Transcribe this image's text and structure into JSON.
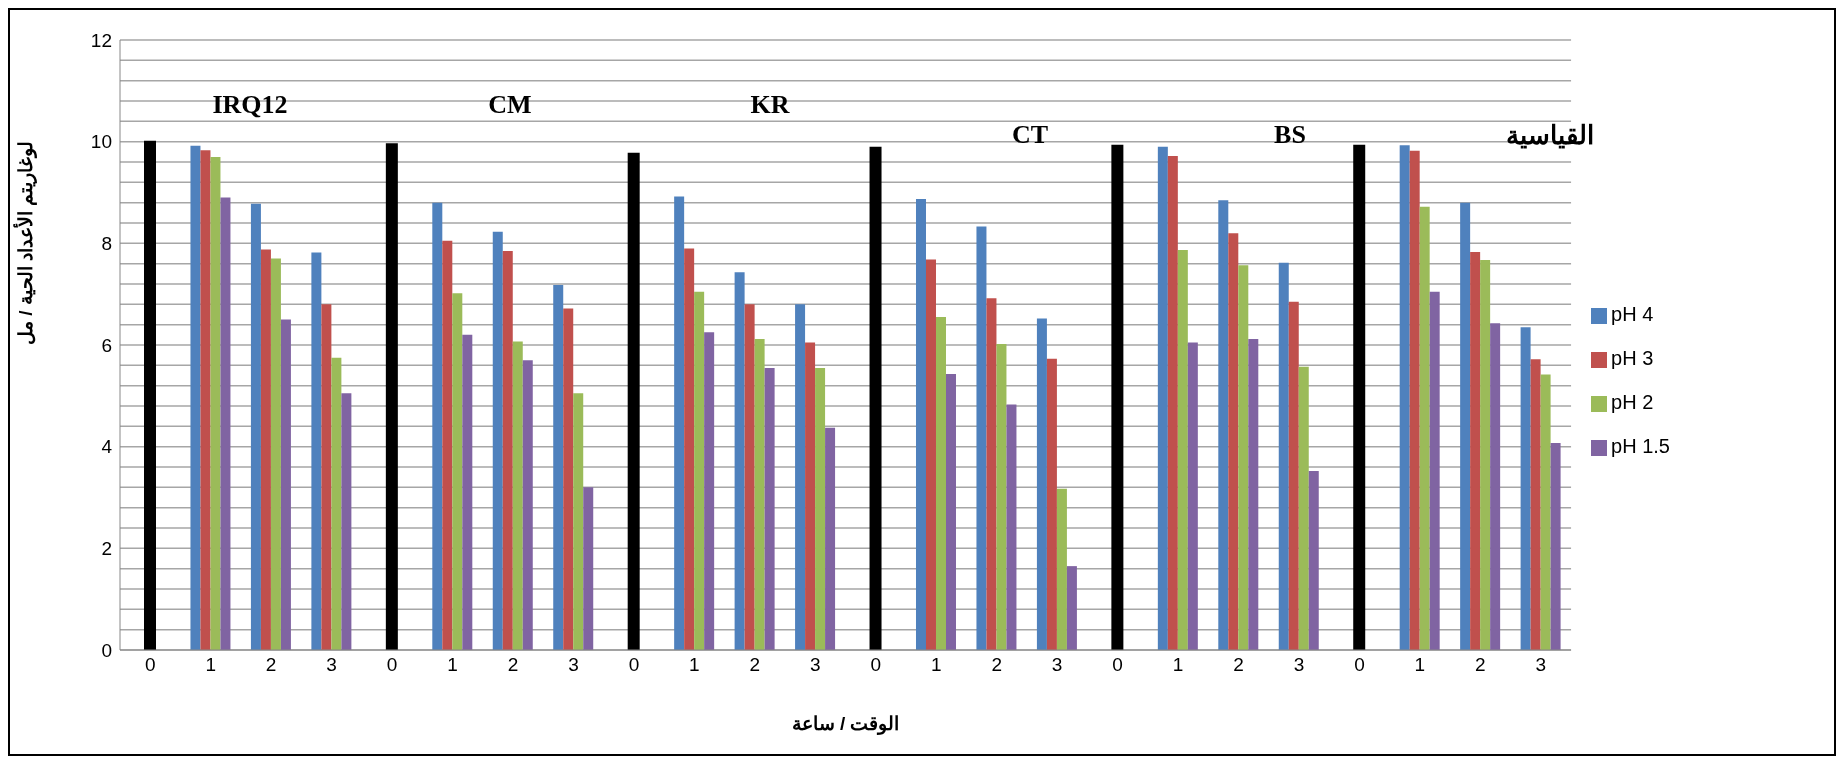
{
  "chart_data": {
    "type": "bar",
    "categories": [
      "0",
      "1",
      "2",
      "3",
      "0",
      "1",
      "2",
      "3",
      "0",
      "1",
      "2",
      "3",
      "0",
      "1",
      "2",
      "3",
      "0",
      "1",
      "2",
      "3",
      "0",
      "1",
      "2",
      "3"
    ],
    "series": [
      {
        "name": "pH 4",
        "color": "#4f81bd",
        "values": [
          null,
          9.92,
          8.78,
          7.82,
          null,
          8.8,
          8.23,
          7.18,
          null,
          8.92,
          7.43,
          6.8,
          null,
          8.87,
          8.33,
          6.52,
          null,
          9.9,
          8.85,
          7.62,
          null,
          9.93,
          8.8,
          6.35
        ]
      },
      {
        "name": "pH 3",
        "color": "#c0504d",
        "values": [
          null,
          9.83,
          7.88,
          6.8,
          null,
          8.05,
          7.85,
          6.72,
          null,
          7.9,
          6.8,
          6.05,
          null,
          7.68,
          6.92,
          5.73,
          null,
          9.72,
          8.2,
          6.85,
          null,
          9.82,
          7.83,
          5.72
        ]
      },
      {
        "name": "pH 2",
        "color": "#9bbb59",
        "values": [
          null,
          9.7,
          7.7,
          5.75,
          null,
          7.02,
          6.07,
          5.05,
          null,
          7.05,
          6.12,
          5.55,
          null,
          6.55,
          6.02,
          3.17,
          null,
          7.87,
          7.57,
          5.57,
          null,
          8.72,
          7.67,
          5.42
        ]
      },
      {
        "name": "pH 1.5",
        "color": "#8064a2",
        "values": [
          null,
          8.9,
          6.5,
          5.05,
          null,
          6.2,
          5.7,
          3.2,
          null,
          6.25,
          5.55,
          4.37,
          null,
          5.43,
          4.83,
          1.65,
          null,
          6.05,
          6.12,
          3.52,
          null,
          7.05,
          6.43,
          4.07
        ]
      },
      {
        "color": "#000000",
        "values": [
          10.02,
          null,
          null,
          null,
          9.97,
          null,
          null,
          null,
          9.78,
          null,
          null,
          null,
          9.9,
          null,
          null,
          null,
          9.94,
          null,
          null,
          null,
          9.94,
          null,
          null,
          null
        ]
      }
    ],
    "xlabel": "الوقت / ساعة",
    "ylabel": "لوغاريتم الأعداد الحية / مل",
    "annotations": [
      "IRQ12",
      "CM",
      "KR",
      "CT",
      "BS",
      "القياسية"
    ],
    "ylim": [
      0,
      12
    ],
    "yticks": [
      0,
      {
        "value": 0.4,
        "label": null
      },
      {
        "value": 0.8,
        "label": null
      },
      {
        "value": 1.2,
        "label": null
      },
      {
        "value": 1.6,
        "label": null
      },
      2,
      {
        "value": 2.4,
        "label": null
      },
      {
        "value": 2.8,
        "label": null
      },
      {
        "value": 3.2,
        "label": null
      },
      {
        "value": 3.6,
        "label": null
      },
      4,
      {
        "value": 4.4,
        "label": null
      },
      {
        "value": 4.8,
        "label": null
      },
      {
        "value": 5.2,
        "label": null
      },
      {
        "value": 5.6,
        "label": null
      },
      6,
      {
        "value": 6.4,
        "label": null
      },
      {
        "value": 6.8,
        "label": null
      },
      {
        "value": 7.2,
        "label": null
      },
      {
        "value": 7.6,
        "label": null
      },
      8,
      {
        "value": 8.4,
        "label": null
      },
      {
        "value": 8.8,
        "label": null
      },
      {
        "value": 9.2,
        "label": null
      },
      {
        "value": 9.6,
        "label": null
      },
      10,
      {
        "value": 10.4,
        "label": null
      },
      {
        "value": 10.8,
        "label": null
      },
      {
        "value": 11.2,
        "label": null
      },
      {
        "value": 11.6,
        "label": null
      },
      12
    ],
    "grid": "y",
    "legend": "right"
  }
}
